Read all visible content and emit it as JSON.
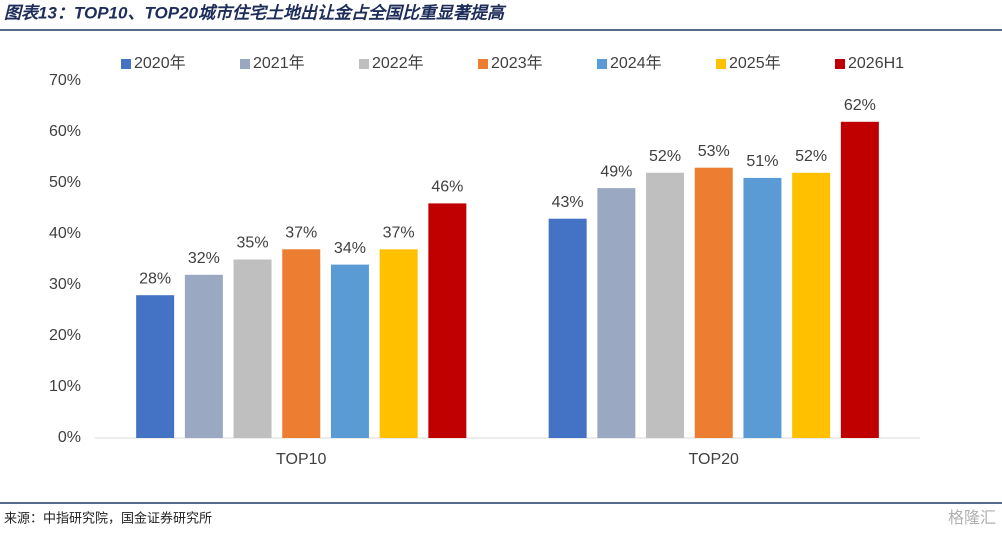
{
  "chart_data": {
    "type": "bar",
    "title": "图表13：TOP10、TOP20城市住宅土地出让金占全国比重显著提高",
    "source": "来源：中指研究院，国金证券研究所",
    "watermark": "格隆汇",
    "categories": [
      "TOP10",
      "TOP20"
    ],
    "series": [
      {
        "name": "2020年",
        "color": "#4472c4",
        "values": [
          28,
          43
        ],
        "value_labels": [
          "28%",
          "43%"
        ]
      },
      {
        "name": "2021年",
        "color": "#9aa9c1",
        "values": [
          32,
          49
        ],
        "value_labels": [
          "32%",
          "49%"
        ]
      },
      {
        "name": "2022年",
        "color": "#bfbfbf",
        "values": [
          35,
          52
        ],
        "value_labels": [
          "35%",
          "52%"
        ]
      },
      {
        "name": "2023年",
        "color": "#ed7d31",
        "values": [
          37,
          53
        ],
        "value_labels": [
          "37%",
          "53%"
        ]
      },
      {
        "name": "2024年",
        "color": "#5b9bd5",
        "values": [
          34,
          51
        ],
        "value_labels": [
          "34%",
          "51%"
        ]
      },
      {
        "name": "2025年",
        "color": "#ffc000",
        "values": [
          37,
          52
        ],
        "value_labels": [
          "37%",
          "52%"
        ]
      },
      {
        "name": "2026H1",
        "color": "#c00000",
        "values": [
          46,
          62
        ],
        "value_labels": [
          "46%",
          "62%"
        ]
      }
    ],
    "ylim": [
      0,
      70
    ],
    "yticks": [
      {
        "value": 0,
        "label": "0%"
      },
      {
        "value": 10,
        "label": "10%"
      },
      {
        "value": 20,
        "label": "20%"
      },
      {
        "value": 30,
        "label": "30%"
      },
      {
        "value": 40,
        "label": "40%"
      },
      {
        "value": 50,
        "label": "50%"
      },
      {
        "value": 60,
        "label": "60%"
      },
      {
        "value": 70,
        "label": "70%"
      }
    ],
    "grid": false
  }
}
